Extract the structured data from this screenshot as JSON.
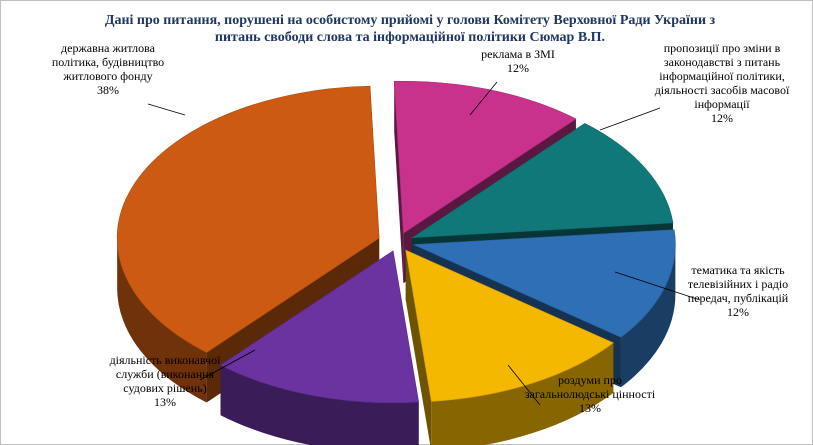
{
  "chart_data": {
    "type": "pie",
    "title_lines": [
      "Дані про питання, порушені на особистому прийомі у голови Комітету Верховної Ради України з",
      "питань свободи слова та інформаційної політики Сюмар В.П."
    ],
    "slices": [
      {
        "label_lines": [
          "реклама в ЗМІ"
        ],
        "percent_label": "12%",
        "value": 12,
        "color": "#c8328c"
      },
      {
        "label_lines": [
          "пропозиції про зміни в",
          "законодавстві з питань",
          "інформаційної політики,",
          "діяльності засобів масової",
          "інформації"
        ],
        "percent_label": "12%",
        "value": 12,
        "color": "#11787a"
      },
      {
        "label_lines": [
          "тематика та якість",
          "телевізійних і радіо",
          "передач, публікацій"
        ],
        "percent_label": "12%",
        "value": 12,
        "color": "#2f6fb6"
      },
      {
        "label_lines": [
          "роздуми про",
          "загальнолюдські цінності"
        ],
        "percent_label": "13%",
        "value": 13,
        "color": "#f5b800"
      },
      {
        "label_lines": [
          "діяльність виконавчої",
          "служби (виконання",
          "судових рішень)"
        ],
        "percent_label": "13%",
        "value": 13,
        "color": "#6a33a0"
      },
      {
        "label_lines": [
          "державна житлова",
          "політика, будівництво",
          "житлового фонду"
        ],
        "percent_label": "38%",
        "value": 38,
        "color": "#cc5a12"
      }
    ]
  }
}
